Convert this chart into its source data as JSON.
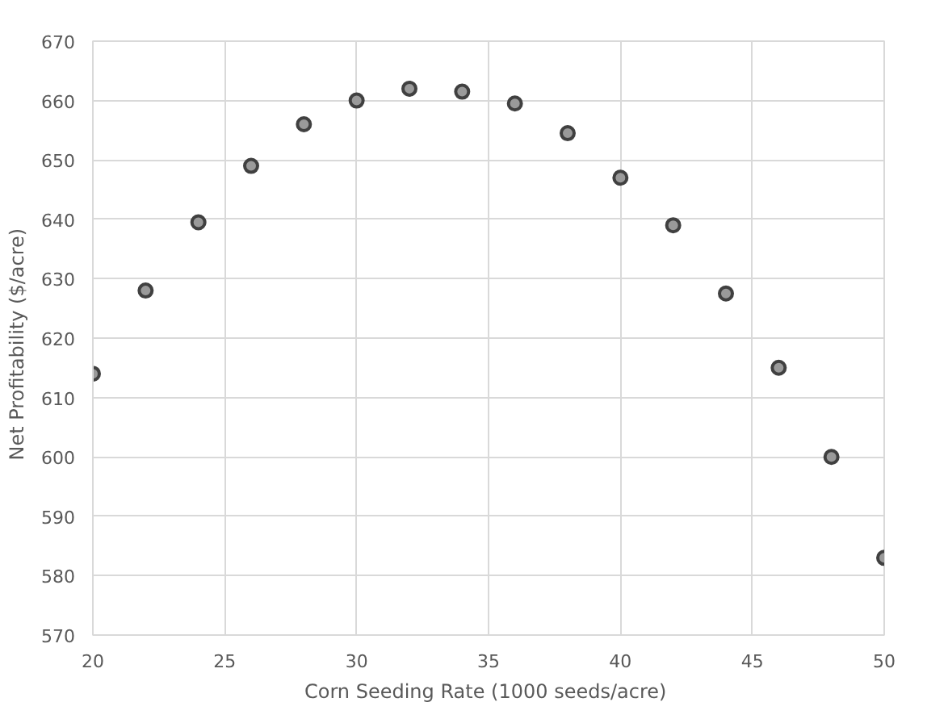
{
  "chart_data": {
    "type": "scatter",
    "xlabel": "Corn  Seeding Rate (1000 seeds/acre)",
    "ylabel": "Net  Profitability  ($/acre)",
    "x": [
      20,
      22,
      24,
      26,
      28,
      30,
      32,
      34,
      36,
      38,
      40,
      42,
      44,
      46,
      48,
      50
    ],
    "series": [
      {
        "color": "#404040",
        "values": [
          614,
          628,
          639.5,
          649,
          656,
          660,
          662,
          661.5,
          659.5,
          654.5,
          647,
          639,
          627.5,
          615,
          600,
          583
        ]
      }
    ],
    "xlim": [
      20,
      50
    ],
    "xticks": [
      20,
      25,
      30,
      35,
      40,
      45,
      50
    ],
    "ylim": [
      570,
      670
    ],
    "yticks": [
      570,
      580,
      590,
      600,
      610,
      620,
      630,
      640,
      650,
      660,
      670
    ],
    "grid": true,
    "marker": "circle"
  }
}
